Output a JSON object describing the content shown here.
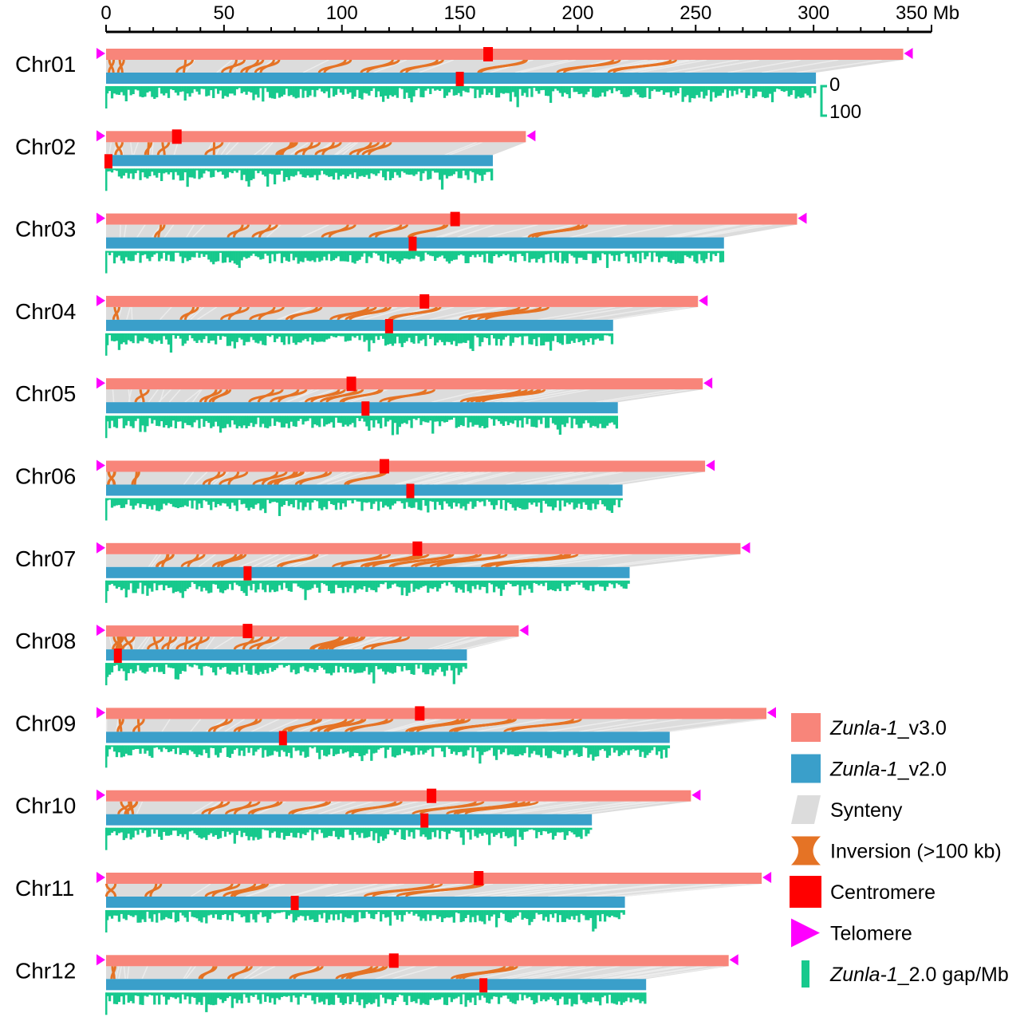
{
  "axis": {
    "unit": "Mb",
    "max": 350,
    "ticks": [
      0,
      50,
      100,
      150,
      200,
      250,
      300,
      350
    ],
    "tick_labels": [
      "0",
      "50",
      "100",
      "150",
      "200",
      "250",
      "300",
      "350 Mb"
    ]
  },
  "gap_scale": {
    "low": "0",
    "high": "100"
  },
  "colors": {
    "v3": "#f8857a",
    "v2": "#3a9fca",
    "synteny": "#dcdcdc",
    "inversion": "#e57325",
    "centromere": "#ff0000",
    "telomere": "#ff00ff",
    "gap": "#17c98d"
  },
  "chromosomes": [
    {
      "name": "Chr01",
      "v3_length": 338,
      "v2_length": 301,
      "v3_centromere": 162,
      "v2_centromere": 150,
      "tel_left": true,
      "tel_right": true
    },
    {
      "name": "Chr02",
      "v3_length": 178,
      "v2_length": 164,
      "v3_centromere": 30,
      "v2_centromere": 1,
      "tel_left": true,
      "tel_right": true
    },
    {
      "name": "Chr03",
      "v3_length": 293,
      "v2_length": 262,
      "v3_centromere": 148,
      "v2_centromere": 130,
      "tel_left": true,
      "tel_right": true
    },
    {
      "name": "Chr04",
      "v3_length": 251,
      "v2_length": 215,
      "v3_centromere": 135,
      "v2_centromere": 120,
      "tel_left": true,
      "tel_right": true
    },
    {
      "name": "Chr05",
      "v3_length": 253,
      "v2_length": 217,
      "v3_centromere": 104,
      "v2_centromere": 110,
      "tel_left": true,
      "tel_right": true
    },
    {
      "name": "Chr06",
      "v3_length": 254,
      "v2_length": 219,
      "v3_centromere": 118,
      "v2_centromere": 129,
      "tel_left": true,
      "tel_right": true
    },
    {
      "name": "Chr07",
      "v3_length": 269,
      "v2_length": 222,
      "v3_centromere": 132,
      "v2_centromere": 60,
      "tel_left": true,
      "tel_right": true
    },
    {
      "name": "Chr08",
      "v3_length": 175,
      "v2_length": 153,
      "v3_centromere": 60,
      "v2_centromere": 5,
      "tel_left": true,
      "tel_right": true
    },
    {
      "name": "Chr09",
      "v3_length": 280,
      "v2_length": 239,
      "v3_centromere": 133,
      "v2_centromere": 75,
      "tel_left": true,
      "tel_right": true
    },
    {
      "name": "Chr10",
      "v3_length": 248,
      "v2_length": 206,
      "v3_centromere": 138,
      "v2_centromere": 135,
      "tel_left": true,
      "tel_right": true
    },
    {
      "name": "Chr11",
      "v3_length": 278,
      "v2_length": 220,
      "v3_centromere": 158,
      "v2_centromere": 80,
      "tel_left": true,
      "tel_right": true
    },
    {
      "name": "Chr12",
      "v3_length": 264,
      "v2_length": 229,
      "v3_centromere": 122,
      "v2_centromere": 160,
      "tel_left": true,
      "tel_right": true
    }
  ],
  "legend": {
    "items": [
      {
        "key": "v3",
        "italic": "Zunla-1",
        "rest": "_v3.0",
        "icon": "rect"
      },
      {
        "key": "v2",
        "italic": "Zunla-1",
        "rest": "_v2.0",
        "icon": "rect"
      },
      {
        "key": "synteny",
        "italic": "",
        "rest": "Synteny",
        "icon": "parallelogram"
      },
      {
        "key": "inversion",
        "italic": "",
        "rest": "Inversion (>100 kb)",
        "icon": "hourglass"
      },
      {
        "key": "centromere",
        "italic": "",
        "rest": "Centromere",
        "icon": "square"
      },
      {
        "key": "telomere",
        "italic": "",
        "rest": "Telomere",
        "icon": "triangle"
      },
      {
        "key": "gap",
        "italic": "Zunla-1",
        "rest": "_2.0 gap/Mb",
        "icon": "bar"
      }
    ]
  }
}
